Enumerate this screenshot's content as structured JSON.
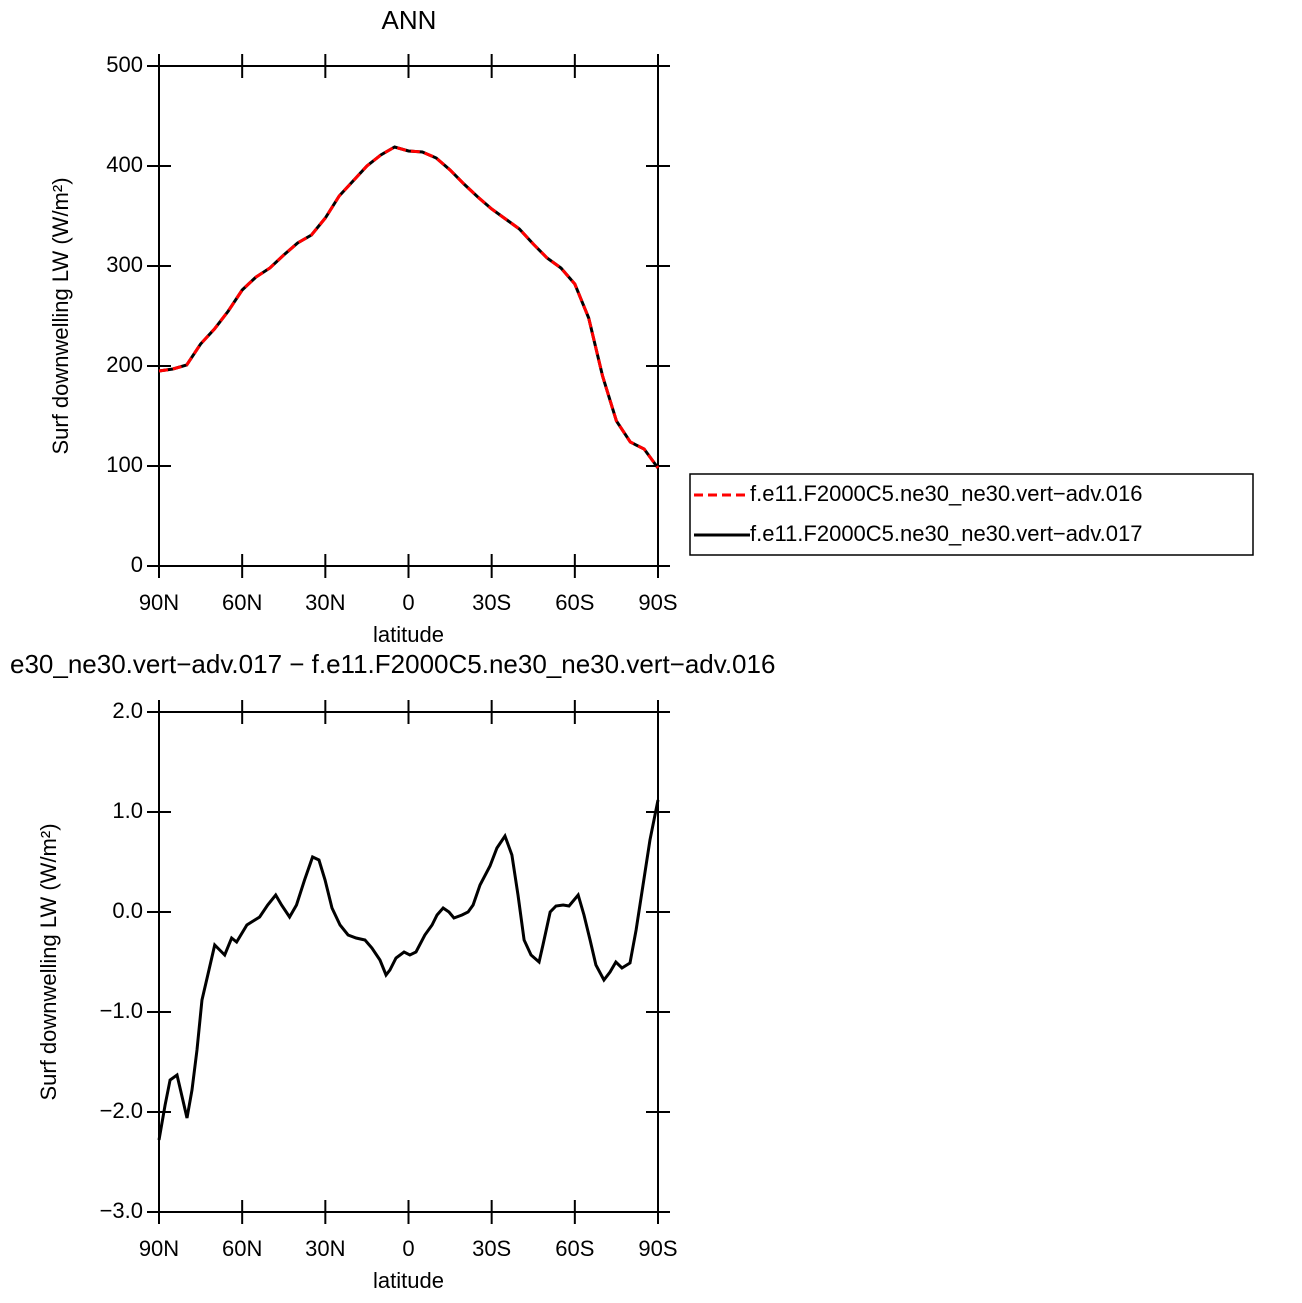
{
  "chart_data": [
    {
      "type": "line",
      "title": "ANN",
      "xlabel": "latitude",
      "ylabel": "Surf downwelling LW (W/m²)",
      "x": [
        90,
        85,
        80,
        75,
        70,
        65,
        60,
        55,
        50,
        45,
        40,
        35,
        30,
        25,
        20,
        15,
        10,
        5,
        0,
        -5,
        -10,
        -15,
        -20,
        -25,
        -30,
        -35,
        -40,
        -45,
        -50,
        -55,
        -60,
        -65,
        -70,
        -75,
        -80,
        -85,
        -90
      ],
      "series": [
        {
          "name": "f.e11.F2000C5.ne30_ne30.vert−adv.016",
          "color": "#ff0000",
          "line_style": "dashed",
          "values": [
            195,
            197,
            201,
            222,
            237,
            255,
            276,
            289,
            298,
            311,
            323,
            331,
            348,
            370,
            385,
            400,
            411,
            419,
            415,
            414,
            408,
            396,
            382,
            369,
            357,
            347,
            337,
            322,
            308,
            298,
            282,
            248,
            190,
            145,
            124,
            117,
            98
          ]
        },
        {
          "name": "f.e11.F2000C5.ne30_ne30.vert−adv.017",
          "color": "#000000",
          "line_style": "solid",
          "values": [
            195,
            197,
            201,
            222,
            237,
            255,
            276,
            289,
            298,
            311,
            323,
            331,
            348,
            370,
            385,
            400,
            411,
            419,
            415,
            414,
            408,
            396,
            382,
            369,
            357,
            347,
            337,
            322,
            308,
            298,
            282,
            248,
            190,
            145,
            124,
            117,
            98
          ]
        }
      ],
      "xlim": [
        90,
        -90
      ],
      "xticks": [
        {
          "value": 90,
          "label": "90N"
        },
        {
          "value": 60,
          "label": "60N"
        },
        {
          "value": 30,
          "label": "30N"
        },
        0,
        {
          "value": -30,
          "label": "30S"
        },
        {
          "value": -60,
          "label": "60S"
        },
        {
          "value": -90,
          "label": "90S"
        }
      ],
      "ylim": [
        0,
        500
      ],
      "yticks": [
        0,
        100,
        200,
        300,
        400,
        500
      ],
      "legend": "right"
    },
    {
      "type": "line",
      "title": "e30_ne30.vert−adv.017 − f.e11.F2000C5.ne30_ne30.vert−adv.016",
      "xlabel": "latitude",
      "ylabel": "Surf downwelling LW (W/m²)",
      "x": [
        90,
        87.8,
        86,
        83.5,
        81.4,
        79.9,
        78.1,
        76.3,
        74.5,
        72.4,
        69.9,
        68.1,
        66.3,
        63.8,
        62,
        58.3,
        56.6,
        53.7,
        50.8,
        47.9,
        45.8,
        42.9,
        40.4,
        37.5,
        34.6,
        32.3,
        30.1,
        27.6,
        24.7,
        21.8,
        18.9,
        15.7,
        13.2,
        10.3,
        8.1,
        6.7,
        4.5,
        1.6,
        -0.5,
        -2.7,
        -5.9,
        -8.5,
        -10.3,
        -12.5,
        -14.6,
        -16.4,
        -19.3,
        -21.5,
        -23.3,
        -25.8,
        -29.4,
        -31.9,
        -34.8,
        -37.3,
        -39.5,
        -41.7,
        -44.2,
        -47.1,
        -48.5,
        -51.1,
        -53.2,
        -55.8,
        -57.9,
        -61.2,
        -63.3,
        -65.5,
        -67.6,
        -70.5,
        -72.7,
        -74.8,
        -77,
        -79.9,
        -82.1,
        -84.6,
        -87.1,
        -90
      ],
      "series": [
        {
          "color": "#000000",
          "line_style": "solid",
          "values": [
            -2.28,
            -1.93,
            -1.68,
            -1.63,
            -1.88,
            -2.06,
            -1.78,
            -1.38,
            -0.88,
            -0.63,
            -0.33,
            -0.38,
            -0.43,
            -0.26,
            -0.3,
            -0.13,
            -0.1,
            -0.05,
            0.07,
            0.17,
            0.07,
            -0.05,
            0.07,
            0.32,
            0.55,
            0.52,
            0.32,
            0.04,
            -0.13,
            -0.23,
            -0.26,
            -0.28,
            -0.36,
            -0.48,
            -0.63,
            -0.58,
            -0.46,
            -0.4,
            -0.43,
            -0.4,
            -0.23,
            -0.13,
            -0.03,
            0.04,
            0,
            -0.06,
            -0.03,
            0,
            0.07,
            0.27,
            0.46,
            0.64,
            0.76,
            0.57,
            0.17,
            -0.28,
            -0.43,
            -0.5,
            -0.33,
            0,
            0.06,
            0.07,
            0.06,
            0.17,
            -0.03,
            -0.28,
            -0.53,
            -0.68,
            -0.6,
            -0.5,
            -0.56,
            -0.51,
            -0.18,
            0.27,
            0.72,
            1.12
          ]
        }
      ],
      "xlim": [
        90,
        -90
      ],
      "xticks": [
        {
          "value": 90,
          "label": "90N"
        },
        {
          "value": 60,
          "label": "60N"
        },
        {
          "value": 30,
          "label": "30N"
        },
        0,
        {
          "value": -30,
          "label": "30S"
        },
        {
          "value": -60,
          "label": "60S"
        },
        {
          "value": -90,
          "label": "90S"
        }
      ],
      "ylim": [
        -3,
        2
      ],
      "yticks": [
        {
          "value": -3,
          "label": "−3.0"
        },
        {
          "value": -2,
          "label": "−2.0"
        },
        {
          "value": -1,
          "label": "−1.0"
        },
        {
          "value": 0,
          "label": "0.0"
        },
        {
          "value": 1,
          "label": "1.0"
        },
        {
          "value": 2,
          "label": "2.0"
        }
      ]
    }
  ]
}
